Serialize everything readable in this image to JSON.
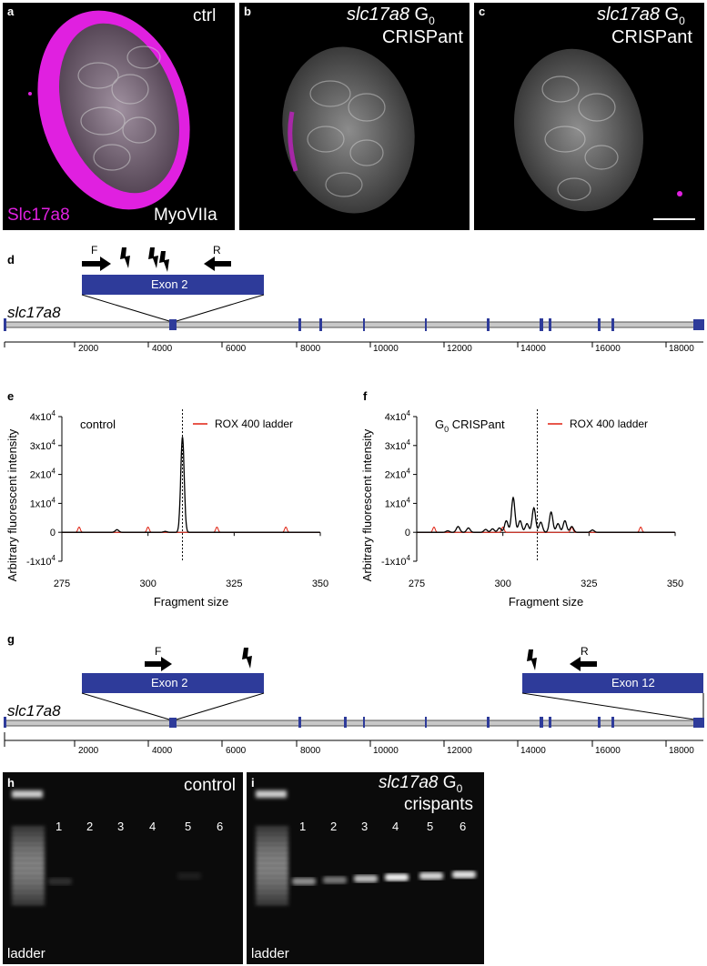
{
  "panels": {
    "a": {
      "letter": "a",
      "top_right": "ctrl",
      "bottom_left": "Slc17a8",
      "bottom_right": "MyoVIIa"
    },
    "b": {
      "letter": "b",
      "gene": "slc17a8",
      "g": "G",
      "g_sub": "0",
      "line2": "CRISPant"
    },
    "c": {
      "letter": "c",
      "gene": "slc17a8",
      "g": "G",
      "g_sub": "0",
      "line2": "CRISPant"
    },
    "d": {
      "letter": "d",
      "primer_f": "F",
      "primer_r": "R",
      "exon_label": "Exon 2",
      "gene": "slc17a8"
    },
    "e": {
      "letter": "e"
    },
    "f": {
      "letter": "f"
    },
    "g": {
      "letter": "g",
      "primer_f": "F",
      "primer_r": "R",
      "exon_left": "Exon 2",
      "exon_right": "Exon 12",
      "gene": "slc17a8"
    },
    "h": {
      "letter": "h",
      "title": "control",
      "ladder": "ladder"
    },
    "i": {
      "letter": "i",
      "gene": "slc17a8",
      "g": "G",
      "g_sub": "0",
      "line2": "crispants",
      "ladder": "ladder"
    }
  },
  "gene_axis": {
    "ticks": [
      "2000",
      "4000",
      "6000",
      "8000",
      "10000",
      "12000",
      "14000",
      "16000",
      "18000"
    ]
  },
  "gel": {
    "lanes": [
      "1",
      "2",
      "3",
      "4",
      "5",
      "6"
    ],
    "control_band_intensity": [
      0.15,
      0.0,
      0.0,
      0.0,
      0.08,
      0.0
    ],
    "crispant_band_intensity": [
      0.55,
      0.45,
      0.75,
      0.95,
      0.85,
      0.9
    ]
  },
  "colors": {
    "magenta": "#e020e0",
    "exon": "#2e3b9a",
    "ladder_red": "#e02010"
  },
  "chart_data": [
    {
      "type": "line",
      "panel": "e",
      "annotation": "control",
      "legend": [
        "ROX 400 ladder"
      ],
      "legend_placement": "top-right",
      "xlabel": "Fragment size",
      "ylabel": "Arbitrary fluorescent intensity",
      "xlim": [
        275,
        350
      ],
      "ylim": [
        -10000,
        40000
      ],
      "x_ticks": [
        "275",
        "300",
        "325",
        "350"
      ],
      "y_ticks": [
        "4x10",
        "3x10",
        "2x10",
        "1x10",
        "0",
        "-1x10"
      ],
      "y_tick_exp": "4",
      "reference_x": 310,
      "series": [
        {
          "name": "ROX 400 ladder",
          "color": "#e02010",
          "peaks": [
            [
              280,
              1800
            ],
            [
              300,
              1800
            ],
            [
              320,
              1800
            ],
            [
              340,
              1800
            ]
          ]
        },
        {
          "color": "#000000",
          "peaks": [
            [
              291,
              900
            ],
            [
              305,
              300
            ],
            [
              310,
              33000
            ]
          ]
        }
      ]
    },
    {
      "type": "line",
      "panel": "f",
      "annotation_main": "G",
      "annotation_sub": "0",
      "annotation_rest": " CRISPant",
      "legend": [
        "ROX 400 ladder"
      ],
      "legend_placement": "top-right",
      "xlabel": "Fragment size",
      "ylabel": "Arbitrary fluorescent intensity",
      "xlim": [
        275,
        350
      ],
      "ylim": [
        -10000,
        40000
      ],
      "x_ticks": [
        "275",
        "300",
        "325",
        "350"
      ],
      "y_ticks": [
        "4x10",
        "3x10",
        "2x10",
        "1x10",
        "0",
        "-1x10"
      ],
      "y_tick_exp": "4",
      "reference_x": 310,
      "series": [
        {
          "name": "ROX 400 ladder",
          "color": "#e02010",
          "peaks": [
            [
              280,
              1800
            ],
            [
              300,
              1800
            ],
            [
              320,
              1800
            ],
            [
              340,
              1800
            ]
          ]
        },
        {
          "color": "#000000",
          "peaks": [
            [
              284,
              500
            ],
            [
              287,
              2000
            ],
            [
              290,
              1500
            ],
            [
              295,
              1000
            ],
            [
              297,
              1200
            ],
            [
              299,
              1500
            ],
            [
              301,
              4000
            ],
            [
              303,
              12000
            ],
            [
              305,
              4000
            ],
            [
              307,
              3000
            ],
            [
              309,
              8500
            ],
            [
              311,
              3500
            ],
            [
              314,
              7000
            ],
            [
              316,
              3000
            ],
            [
              318,
              4000
            ],
            [
              320,
              2000
            ],
            [
              326,
              800
            ]
          ]
        }
      ]
    }
  ]
}
